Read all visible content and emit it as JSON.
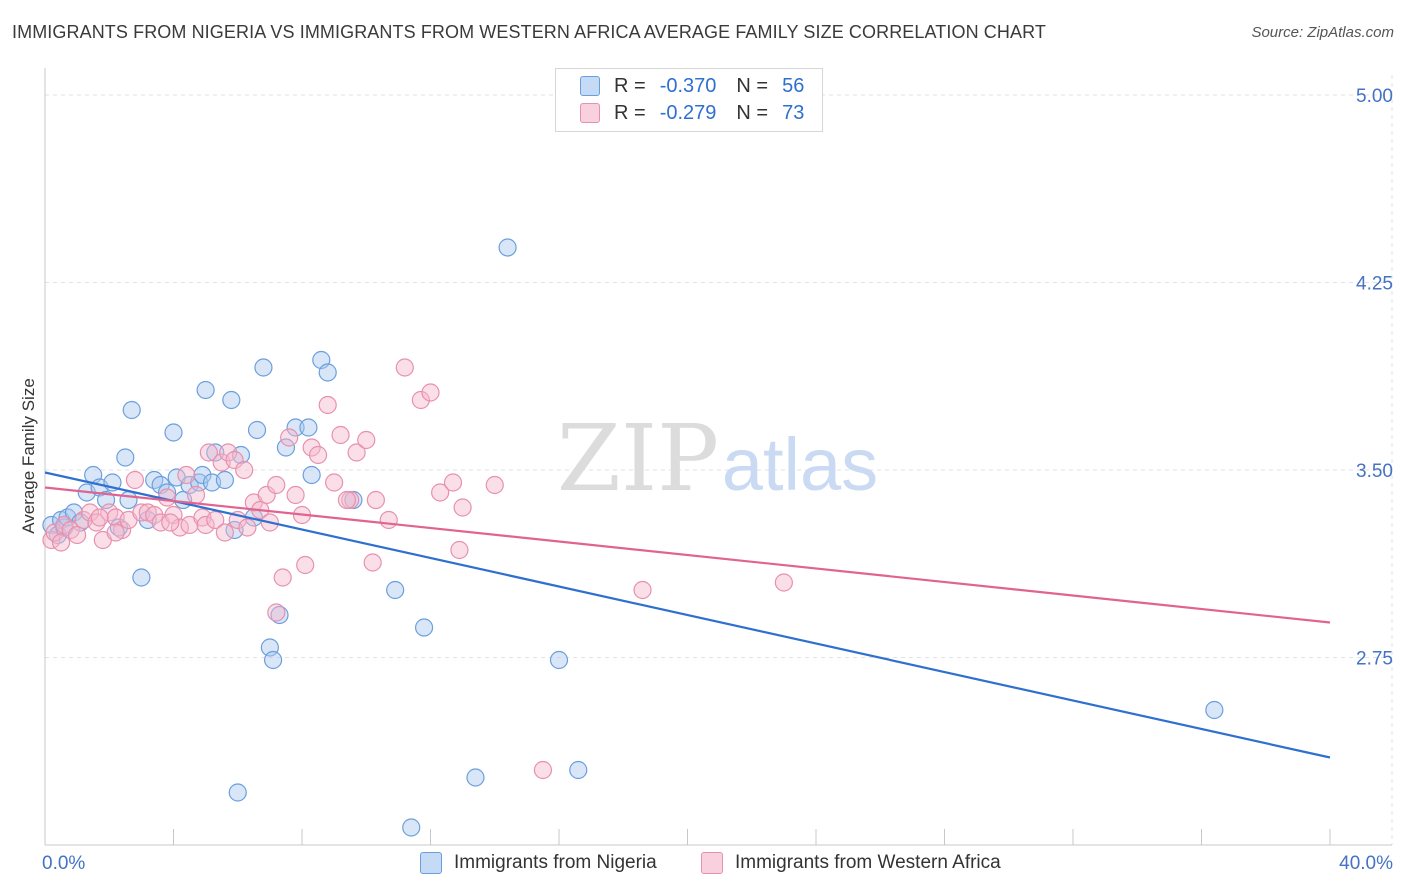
{
  "title": "IMMIGRANTS FROM NIGERIA VS IMMIGRANTS FROM WESTERN AFRICA AVERAGE FAMILY SIZE CORRELATION CHART",
  "source": "Source: ZipAtlas.com",
  "watermark": {
    "zip": "ZIP",
    "atlas": "atlas"
  },
  "colors": {
    "nigeria_fill": "#a9c8ef",
    "nigeria_stroke": "#6b9fdc",
    "nigeria_line": "#2f6fd0",
    "wafrica_fill": "#f5b8cb",
    "wafrica_stroke": "#e890ad",
    "wafrica_line": "#e0648f",
    "axis_label": "#4472c4"
  },
  "legend": {
    "r_label": "R =",
    "n_label": "N =",
    "rows": [
      {
        "r": "-0.370",
        "n": "56"
      },
      {
        "r": "-0.279",
        "n": "73"
      }
    ]
  },
  "chart_data": {
    "type": "scatter",
    "ylabel": "Average Family Size",
    "x_tick_labels": [
      "0.0%",
      "40.0%"
    ],
    "y_tick_labels": [
      "2.75",
      "3.50",
      "4.25",
      "5.00"
    ],
    "xlim": [
      0,
      40
    ],
    "ylim": [
      2.0,
      5.08
    ],
    "y_ticks": [
      2.75,
      3.5,
      4.25,
      5.0
    ],
    "series": [
      {
        "name": "Immigrants from Nigeria",
        "trend": {
          "x": [
            0,
            40
          ],
          "y": [
            3.49,
            2.35
          ]
        },
        "points": [
          [
            0.2,
            3.28
          ],
          [
            0.4,
            3.24
          ],
          [
            0.5,
            3.3
          ],
          [
            0.6,
            3.27
          ],
          [
            0.7,
            3.31
          ],
          [
            0.9,
            3.33
          ],
          [
            1.1,
            3.29
          ],
          [
            1.3,
            3.41
          ],
          [
            1.5,
            3.48
          ],
          [
            1.7,
            3.43
          ],
          [
            1.9,
            3.38
          ],
          [
            2.1,
            3.45
          ],
          [
            2.3,
            3.27
          ],
          [
            2.5,
            3.55
          ],
          [
            2.6,
            3.38
          ],
          [
            2.7,
            3.74
          ],
          [
            3.0,
            3.07
          ],
          [
            3.2,
            3.3
          ],
          [
            3.4,
            3.46
          ],
          [
            3.6,
            3.44
          ],
          [
            3.8,
            3.41
          ],
          [
            4.0,
            3.65
          ],
          [
            4.1,
            3.47
          ],
          [
            4.3,
            3.38
          ],
          [
            4.5,
            3.44
          ],
          [
            4.8,
            3.45
          ],
          [
            4.9,
            3.48
          ],
          [
            5.0,
            3.82
          ],
          [
            5.2,
            3.45
          ],
          [
            5.3,
            3.57
          ],
          [
            5.6,
            3.46
          ],
          [
            5.8,
            3.78
          ],
          [
            5.9,
            3.26
          ],
          [
            6.0,
            2.21
          ],
          [
            6.1,
            3.56
          ],
          [
            6.5,
            3.31
          ],
          [
            6.6,
            3.66
          ],
          [
            6.8,
            3.91
          ],
          [
            7.0,
            2.79
          ],
          [
            7.1,
            2.74
          ],
          [
            7.3,
            2.92
          ],
          [
            7.5,
            3.59
          ],
          [
            7.8,
            3.67
          ],
          [
            8.2,
            3.67
          ],
          [
            8.3,
            3.48
          ],
          [
            8.6,
            3.94
          ],
          [
            8.8,
            3.89
          ],
          [
            9.6,
            3.38
          ],
          [
            10.9,
            3.02
          ],
          [
            11.4,
            2.07
          ],
          [
            11.8,
            2.87
          ],
          [
            13.4,
            2.27
          ],
          [
            14.4,
            4.39
          ],
          [
            16.0,
            2.74
          ],
          [
            16.6,
            2.3
          ],
          [
            36.4,
            2.54
          ]
        ]
      },
      {
        "name": "Immigrants from Western Africa",
        "trend": {
          "x": [
            0,
            40
          ],
          "y": [
            3.43,
            2.89
          ]
        },
        "points": [
          [
            0.2,
            3.22
          ],
          [
            0.3,
            3.25
          ],
          [
            0.5,
            3.21
          ],
          [
            0.6,
            3.28
          ],
          [
            0.8,
            3.26
          ],
          [
            1.0,
            3.24
          ],
          [
            1.2,
            3.3
          ],
          [
            1.4,
            3.33
          ],
          [
            1.6,
            3.29
          ],
          [
            1.8,
            3.22
          ],
          [
            2.0,
            3.33
          ],
          [
            2.2,
            3.31
          ],
          [
            2.4,
            3.26
          ],
          [
            2.6,
            3.3
          ],
          [
            2.8,
            3.46
          ],
          [
            3.0,
            3.33
          ],
          [
            3.2,
            3.33
          ],
          [
            3.4,
            3.32
          ],
          [
            3.6,
            3.29
          ],
          [
            3.8,
            3.39
          ],
          [
            4.0,
            3.32
          ],
          [
            4.2,
            3.27
          ],
          [
            4.4,
            3.48
          ],
          [
            4.5,
            3.28
          ],
          [
            4.7,
            3.4
          ],
          [
            4.9,
            3.31
          ],
          [
            5.0,
            3.28
          ],
          [
            5.1,
            3.57
          ],
          [
            5.3,
            3.3
          ],
          [
            5.5,
            3.53
          ],
          [
            5.7,
            3.57
          ],
          [
            5.9,
            3.54
          ],
          [
            6.0,
            3.3
          ],
          [
            6.2,
            3.5
          ],
          [
            6.3,
            3.27
          ],
          [
            6.5,
            3.37
          ],
          [
            6.7,
            3.34
          ],
          [
            6.9,
            3.4
          ],
          [
            7.0,
            3.29
          ],
          [
            7.2,
            3.44
          ],
          [
            7.4,
            3.07
          ],
          [
            7.6,
            3.63
          ],
          [
            7.8,
            3.4
          ],
          [
            8.0,
            3.32
          ],
          [
            8.1,
            3.12
          ],
          [
            8.3,
            3.59
          ],
          [
            8.5,
            3.56
          ],
          [
            8.8,
            3.76
          ],
          [
            9.0,
            3.45
          ],
          [
            9.2,
            3.64
          ],
          [
            9.5,
            3.38
          ],
          [
            9.7,
            3.57
          ],
          [
            10.0,
            3.62
          ],
          [
            10.3,
            3.38
          ],
          [
            10.7,
            3.3
          ],
          [
            11.2,
            3.91
          ],
          [
            11.7,
            3.78
          ],
          [
            12.0,
            3.81
          ],
          [
            12.3,
            3.41
          ],
          [
            12.7,
            3.45
          ],
          [
            13.0,
            3.35
          ],
          [
            14.0,
            3.44
          ],
          [
            15.5,
            2.3
          ],
          [
            18.6,
            3.02
          ],
          [
            23.0,
            3.05
          ],
          [
            9.4,
            3.38
          ],
          [
            10.2,
            3.13
          ],
          [
            12.9,
            3.18
          ],
          [
            7.2,
            2.93
          ],
          [
            3.9,
            3.29
          ],
          [
            2.2,
            3.25
          ],
          [
            5.6,
            3.25
          ],
          [
            1.7,
            3.31
          ]
        ]
      }
    ]
  }
}
